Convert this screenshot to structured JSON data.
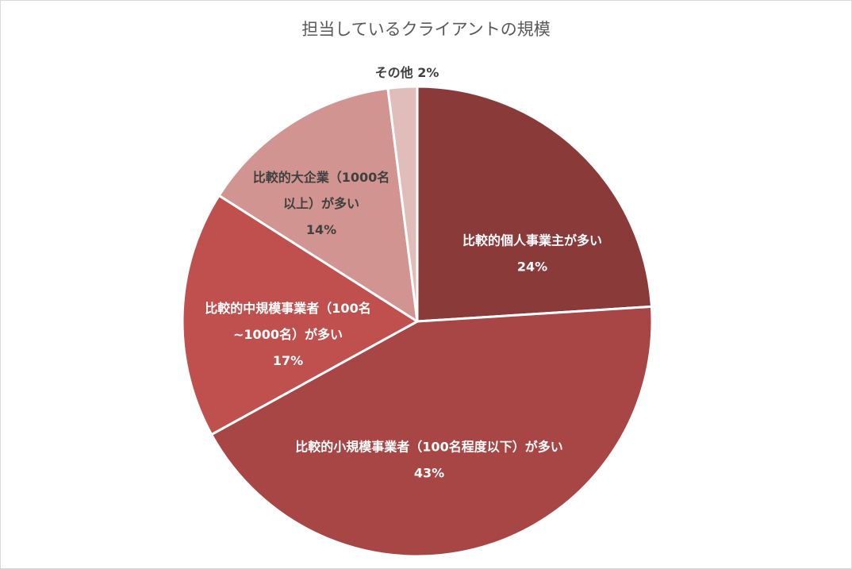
{
  "chart_data": {
    "type": "pie",
    "title": "担当しているクライアントの規模",
    "slices": [
      {
        "name": "比較的個人事業主が多い",
        "label_lines": [
          "比較的個人事業主が多い"
        ],
        "value": 24,
        "value_label": "24%",
        "color": "#8b3a3a",
        "label_color": "#ffffff"
      },
      {
        "name": "比較的小規模事業者（100名程度以下）が多い",
        "label_lines": [
          "比較的小規模事業者（100名程度以下）が多い"
        ],
        "value": 43,
        "value_label": "43%",
        "color": "#a84545",
        "label_color": "#ffffff"
      },
      {
        "name": "比較的中規模事業者（100名~1000名）が多い",
        "label_lines": [
          "比較的中規模事業者（100名",
          "~1000名）が多い"
        ],
        "value": 17,
        "value_label": "17%",
        "color": "#bf504d",
        "label_color": "#ffffff"
      },
      {
        "name": "比較的大企業（1000名以上）が多い",
        "label_lines": [
          "比較的大企業（1000名",
          "以上）が多い"
        ],
        "value": 14,
        "value_label": "14%",
        "color": "#d19491",
        "label_color": "#404040"
      },
      {
        "name": "その他",
        "label_lines": [
          "その他 2%"
        ],
        "value": 2,
        "value_label": "",
        "color": "#e0bcbb",
        "label_color": "#404040"
      }
    ]
  }
}
